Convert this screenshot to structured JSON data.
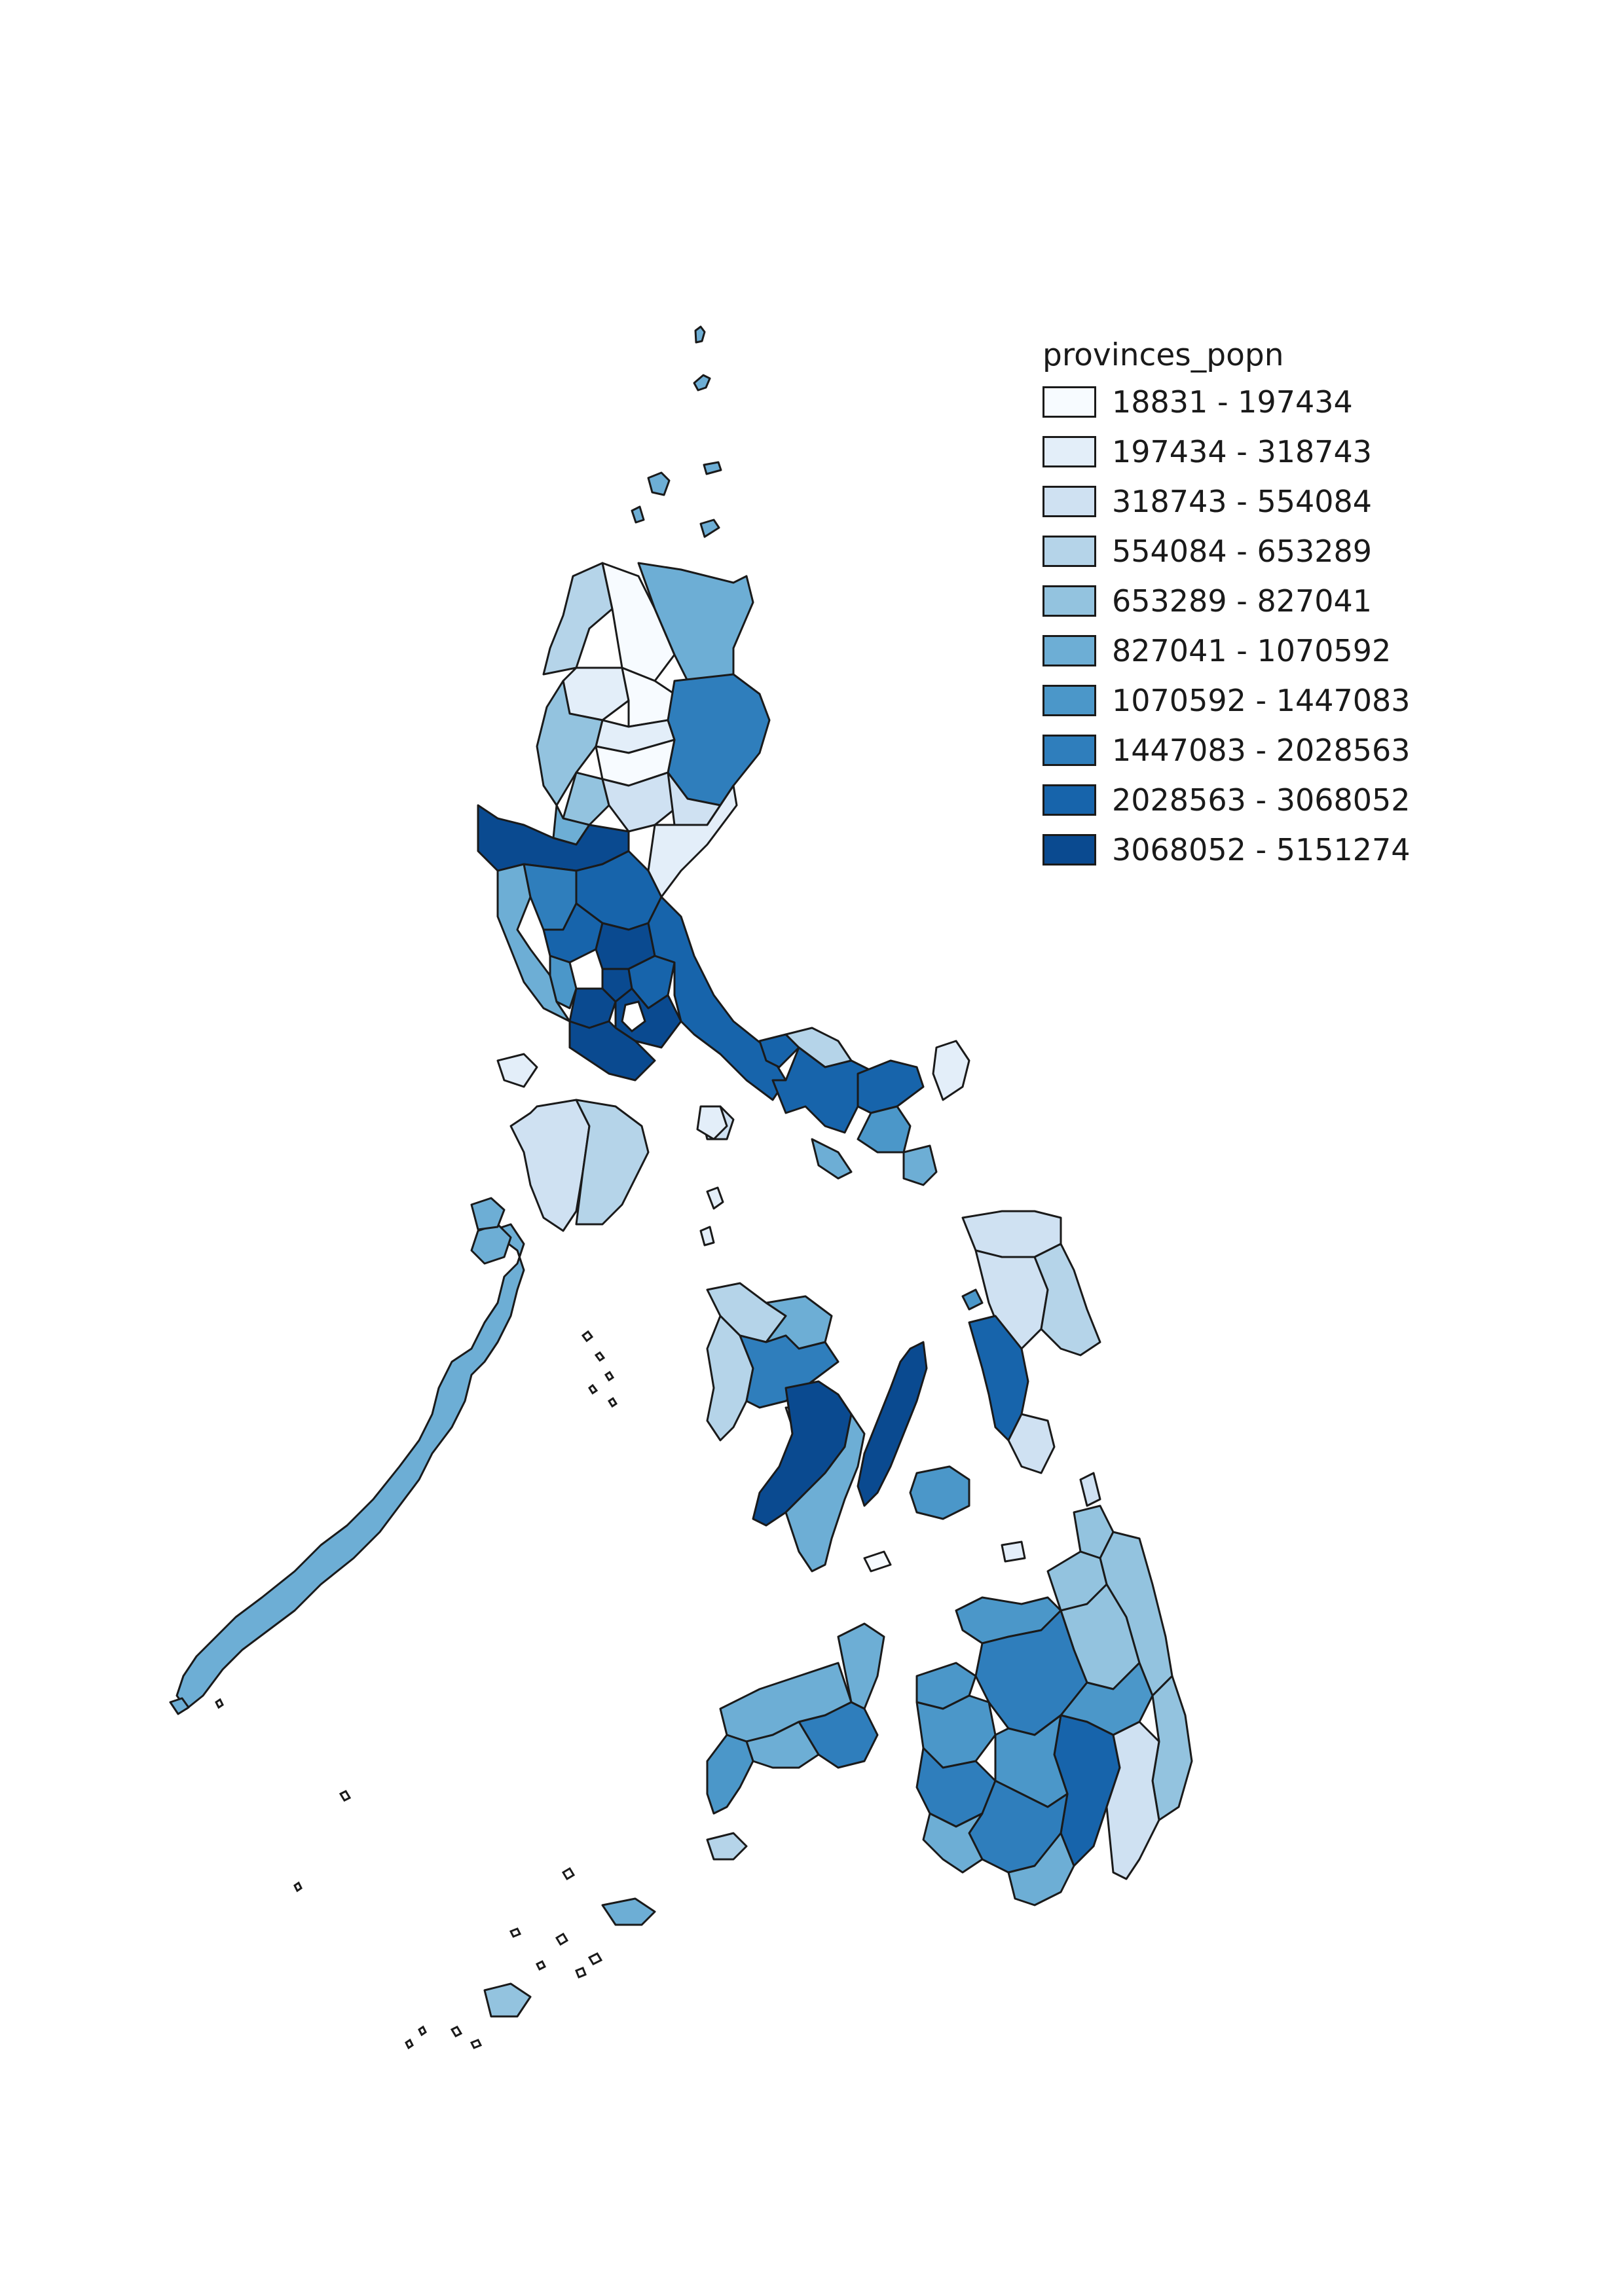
{
  "map": {
    "title": "provinces_popn",
    "legend_position": "top-right",
    "classes": [
      {
        "label": "18831 - 197434",
        "color": "#f7fbff"
      },
      {
        "label": "197434 - 318743",
        "color": "#e3eef9"
      },
      {
        "label": "318743 - 554084",
        "color": "#cfe1f2"
      },
      {
        "label": "554084 - 653289",
        "color": "#b5d4e9"
      },
      {
        "label": "653289 - 827041",
        "color": "#93c3df"
      },
      {
        "label": "827041 - 1070592",
        "color": "#6daed5"
      },
      {
        "label": "1070592 - 1447083",
        "color": "#4b97c9"
      },
      {
        "label": "1447083 - 2028563",
        "color": "#2f7ebc"
      },
      {
        "label": "2028563 - 3068052",
        "color": "#1764ab"
      },
      {
        "label": "3068052 - 5151274",
        "color": "#0a4a90"
      }
    ],
    "stroke_color": "#1a1a1a"
  }
}
